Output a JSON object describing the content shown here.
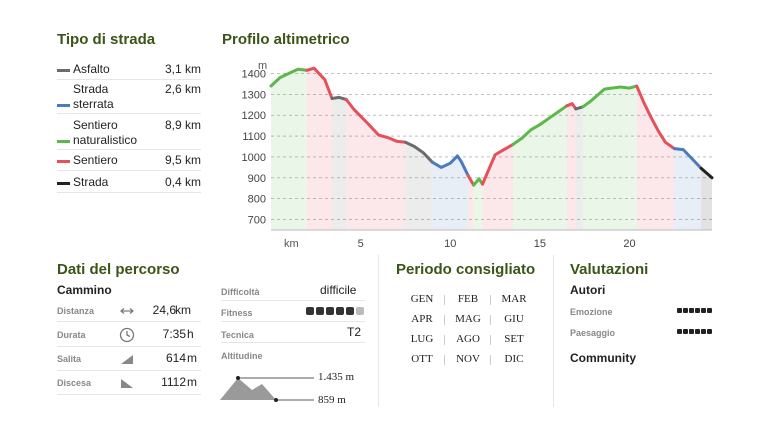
{
  "road_type": {
    "title": "Tipo di strada",
    "items": [
      {
        "label": "Asfalto",
        "value": "3,1 km",
        "color": "#6b6b6b"
      },
      {
        "label": "Strada sterrata",
        "value": "2,6 km",
        "color": "#4b7bbd"
      },
      {
        "label": "Sentiero naturalistico",
        "value": "8,9 km",
        "color": "#5cb84a"
      },
      {
        "label": "Sentiero",
        "value": "9,5 km",
        "color": "#e5505a"
      },
      {
        "label": "Strada",
        "value": "0,4 km",
        "color": "#222222"
      }
    ]
  },
  "profile": {
    "title": "Profilo altimetrico",
    "y_unit": "m",
    "x_unit": "km",
    "y_ticks": [
      "1400",
      "1300",
      "1200",
      "1100",
      "1000",
      "900",
      "800",
      "700"
    ],
    "x_ticks": [
      "5",
      "10",
      "15",
      "20"
    ]
  },
  "chart_data": {
    "type": "area",
    "title": "Profilo altimetrico",
    "xlabel": "km",
    "ylabel": "m",
    "xlim": [
      0,
      24.6
    ],
    "ylim": [
      650,
      1450
    ],
    "x": [
      0,
      0.5,
      1,
      1.5,
      2,
      2.4,
      3,
      3.4,
      3.8,
      4.2,
      4.6,
      5,
      5.4,
      6,
      6.6,
      7,
      7.5,
      8,
      8.5,
      9,
      9.5,
      10,
      10.4,
      10.6,
      11,
      11.3,
      11.6,
      11.8,
      12.2,
      12.5,
      13,
      13.5,
      14,
      14.5,
      15,
      15.5,
      16,
      16.5,
      16.8,
      17,
      17.4,
      17.8,
      18.2,
      18.6,
      19,
      19.5,
      20,
      20.4,
      20.8,
      21.2,
      21.6,
      22,
      22.5,
      23,
      23.5,
      24,
      24.6
    ],
    "series": [
      {
        "values": [
          1340,
          1380,
          1400,
          1420,
          1415,
          1425,
          1370,
          1280,
          1285,
          1275,
          1230,
          1195,
          1160,
          1105,
          1090,
          1075,
          1070,
          1050,
          1020,
          975,
          950,
          970,
          1005,
          980,
          910,
          865,
          895,
          870,
          950,
          1010,
          1035,
          1060,
          1090,
          1130,
          1155,
          1185,
          1215,
          1245,
          1255,
          1230,
          1240,
          1265,
          1295,
          1325,
          1330,
          1335,
          1330,
          1340,
          1260,
          1190,
          1125,
          1070,
          1040,
          1035,
          990,
          945,
          900
        ]
      }
    ],
    "segments": [
      {
        "type": "Sentiero naturalistico",
        "from": 0,
        "to": 2
      },
      {
        "type": "Sentiero",
        "from": 2,
        "to": 3.4
      },
      {
        "type": "Asfalto",
        "from": 3.4,
        "to": 4.2
      },
      {
        "type": "Sentiero",
        "from": 4.2,
        "to": 7.5
      },
      {
        "type": "Asfalto",
        "from": 7.5,
        "to": 9
      },
      {
        "type": "Strada sterrata",
        "from": 9,
        "to": 11
      },
      {
        "type": "Sentiero",
        "from": 11,
        "to": 11.3
      },
      {
        "type": "Sentiero naturalistico",
        "from": 11.3,
        "to": 11.8
      },
      {
        "type": "Sentiero",
        "from": 11.8,
        "to": 13.5
      },
      {
        "type": "Sentiero naturalistico",
        "from": 13.5,
        "to": 16.5
      },
      {
        "type": "Sentiero",
        "from": 16.5,
        "to": 17
      },
      {
        "type": "Asfalto",
        "from": 17,
        "to": 17.4
      },
      {
        "type": "Sentiero naturalistico",
        "from": 17.4,
        "to": 20.4
      },
      {
        "type": "Sentiero",
        "from": 20.4,
        "to": 22.5
      },
      {
        "type": "Strada sterrata",
        "from": 22.5,
        "to": 24
      },
      {
        "type": "Strada",
        "from": 24,
        "to": 24.6
      }
    ]
  },
  "route_data": {
    "title": "Dati del percorso",
    "subtitle": "Cammino",
    "rows": [
      {
        "label": "Distanza",
        "value": "24,6",
        "unit": "km",
        "icon": "distance-icon"
      },
      {
        "label": "Durata",
        "value": "7:35",
        "unit": "h",
        "icon": "clock-icon"
      },
      {
        "label": "Salita",
        "value": "614",
        "unit": "m",
        "icon": "ascent-icon"
      },
      {
        "label": "Discesa",
        "value": "1112",
        "unit": "m",
        "icon": "descent-icon"
      }
    ]
  },
  "technical": {
    "difficulty_label": "Difficoltà",
    "difficulty_value": "difficile",
    "fitness_label": "Fitness",
    "fitness_level": 5,
    "fitness_max": 6,
    "technique_label": "Tecnica",
    "technique_value": "T2",
    "altitude_label": "Altitudine",
    "altitude_max": "1.435 m",
    "altitude_min": "859 m"
  },
  "season": {
    "title": "Periodo consigliato",
    "months": [
      "GEN",
      "FEB",
      "MAR",
      "APR",
      "MAG",
      "GIU",
      "LUG",
      "AGO",
      "SET",
      "OTT",
      "NOV",
      "DIC"
    ]
  },
  "ratings": {
    "title": "Valutazioni",
    "authors_title": "Autori",
    "emotion_label": "Emozione",
    "emotion_level": 6,
    "landscape_label": "Paesaggio",
    "landscape_level": 6,
    "community_title": "Community"
  }
}
